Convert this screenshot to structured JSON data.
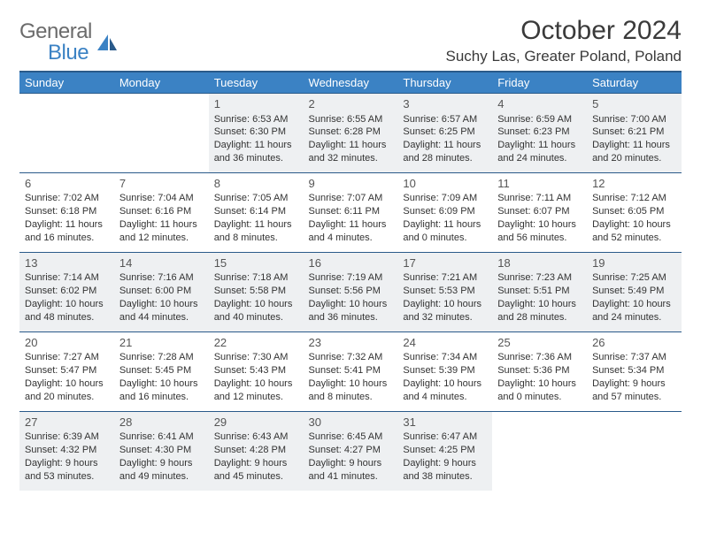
{
  "logo": {
    "general": "General",
    "blue": "Blue"
  },
  "title": "October 2024",
  "location": "Suchy Las, Greater Poland, Poland",
  "colors": {
    "header_bg": "#3b82c4",
    "header_border": "#2a5a8a",
    "shaded": "#eef0f2",
    "text": "#333333"
  },
  "days": [
    "Sunday",
    "Monday",
    "Tuesday",
    "Wednesday",
    "Thursday",
    "Friday",
    "Saturday"
  ],
  "weeks": [
    [
      null,
      null,
      {
        "n": "1",
        "sr": "6:53 AM",
        "ss": "6:30 PM",
        "dl": "11 hours and 36 minutes."
      },
      {
        "n": "2",
        "sr": "6:55 AM",
        "ss": "6:28 PM",
        "dl": "11 hours and 32 minutes."
      },
      {
        "n": "3",
        "sr": "6:57 AM",
        "ss": "6:25 PM",
        "dl": "11 hours and 28 minutes."
      },
      {
        "n": "4",
        "sr": "6:59 AM",
        "ss": "6:23 PM",
        "dl": "11 hours and 24 minutes."
      },
      {
        "n": "5",
        "sr": "7:00 AM",
        "ss": "6:21 PM",
        "dl": "11 hours and 20 minutes."
      }
    ],
    [
      {
        "n": "6",
        "sr": "7:02 AM",
        "ss": "6:18 PM",
        "dl": "11 hours and 16 minutes."
      },
      {
        "n": "7",
        "sr": "7:04 AM",
        "ss": "6:16 PM",
        "dl": "11 hours and 12 minutes."
      },
      {
        "n": "8",
        "sr": "7:05 AM",
        "ss": "6:14 PM",
        "dl": "11 hours and 8 minutes."
      },
      {
        "n": "9",
        "sr": "7:07 AM",
        "ss": "6:11 PM",
        "dl": "11 hours and 4 minutes."
      },
      {
        "n": "10",
        "sr": "7:09 AM",
        "ss": "6:09 PM",
        "dl": "11 hours and 0 minutes."
      },
      {
        "n": "11",
        "sr": "7:11 AM",
        "ss": "6:07 PM",
        "dl": "10 hours and 56 minutes."
      },
      {
        "n": "12",
        "sr": "7:12 AM",
        "ss": "6:05 PM",
        "dl": "10 hours and 52 minutes."
      }
    ],
    [
      {
        "n": "13",
        "sr": "7:14 AM",
        "ss": "6:02 PM",
        "dl": "10 hours and 48 minutes."
      },
      {
        "n": "14",
        "sr": "7:16 AM",
        "ss": "6:00 PM",
        "dl": "10 hours and 44 minutes."
      },
      {
        "n": "15",
        "sr": "7:18 AM",
        "ss": "5:58 PM",
        "dl": "10 hours and 40 minutes."
      },
      {
        "n": "16",
        "sr": "7:19 AM",
        "ss": "5:56 PM",
        "dl": "10 hours and 36 minutes."
      },
      {
        "n": "17",
        "sr": "7:21 AM",
        "ss": "5:53 PM",
        "dl": "10 hours and 32 minutes."
      },
      {
        "n": "18",
        "sr": "7:23 AM",
        "ss": "5:51 PM",
        "dl": "10 hours and 28 minutes."
      },
      {
        "n": "19",
        "sr": "7:25 AM",
        "ss": "5:49 PM",
        "dl": "10 hours and 24 minutes."
      }
    ],
    [
      {
        "n": "20",
        "sr": "7:27 AM",
        "ss": "5:47 PM",
        "dl": "10 hours and 20 minutes."
      },
      {
        "n": "21",
        "sr": "7:28 AM",
        "ss": "5:45 PM",
        "dl": "10 hours and 16 minutes."
      },
      {
        "n": "22",
        "sr": "7:30 AM",
        "ss": "5:43 PM",
        "dl": "10 hours and 12 minutes."
      },
      {
        "n": "23",
        "sr": "7:32 AM",
        "ss": "5:41 PM",
        "dl": "10 hours and 8 minutes."
      },
      {
        "n": "24",
        "sr": "7:34 AM",
        "ss": "5:39 PM",
        "dl": "10 hours and 4 minutes."
      },
      {
        "n": "25",
        "sr": "7:36 AM",
        "ss": "5:36 PM",
        "dl": "10 hours and 0 minutes."
      },
      {
        "n": "26",
        "sr": "7:37 AM",
        "ss": "5:34 PM",
        "dl": "9 hours and 57 minutes."
      }
    ],
    [
      {
        "n": "27",
        "sr": "6:39 AM",
        "ss": "4:32 PM",
        "dl": "9 hours and 53 minutes."
      },
      {
        "n": "28",
        "sr": "6:41 AM",
        "ss": "4:30 PM",
        "dl": "9 hours and 49 minutes."
      },
      {
        "n": "29",
        "sr": "6:43 AM",
        "ss": "4:28 PM",
        "dl": "9 hours and 45 minutes."
      },
      {
        "n": "30",
        "sr": "6:45 AM",
        "ss": "4:27 PM",
        "dl": "9 hours and 41 minutes."
      },
      {
        "n": "31",
        "sr": "6:47 AM",
        "ss": "4:25 PM",
        "dl": "9 hours and 38 minutes."
      },
      null,
      null
    ]
  ],
  "labels": {
    "sunrise": "Sunrise:",
    "sunset": "Sunset:",
    "daylight": "Daylight:"
  }
}
